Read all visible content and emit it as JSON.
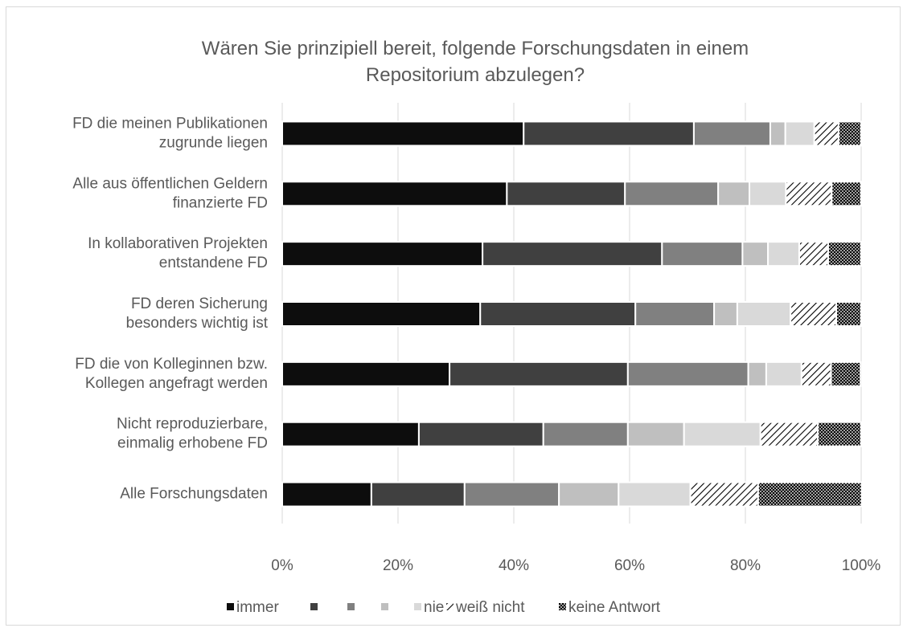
{
  "chart_data": {
    "type": "stacked_barh",
    "title": "Wären Sie prinzipiell bereit, folgende Forschungsdaten in einem\nRepositorium abzulegen?",
    "categories": [
      "FD die meinen Publikationen\nzugrunde liegen",
      "Alle aus öffentlichen Geldern\nfinanzierte FD",
      "In kollaborativen Projekten\nentstandene FD",
      "FD deren Sicherung\nbesonders wichtig ist",
      "FD die von Kolleginnen bzw.\nKollegen angefragt werden",
      "Nicht reproduzierbare,\neinmalig erhobene FD",
      "Alle Forschungsdaten"
    ],
    "series": [
      {
        "name": "immer",
        "color": "#0d0d0d",
        "values": [
          41.7,
          38.8,
          34.6,
          34.2,
          28.9,
          23.6,
          15.4
        ]
      },
      {
        "name": null,
        "color": "#404040",
        "values": [
          29.4,
          20.4,
          31.0,
          26.8,
          30.8,
          21.5,
          16.1
        ]
      },
      {
        "name": null,
        "color": "#808080",
        "values": [
          13.2,
          16.1,
          13.9,
          13.6,
          20.8,
          14.6,
          16.3
        ]
      },
      {
        "name": null,
        "color": "#bfbfbf",
        "values": [
          2.6,
          5.4,
          4.4,
          4.0,
          3.1,
          9.7,
          10.3
        ]
      },
      {
        "name": "nie",
        "color": "#d9d9d9",
        "values": [
          5.0,
          6.3,
          5.4,
          9.2,
          6.1,
          13.2,
          12.4
        ]
      },
      {
        "name": "weiß nicht",
        "color": "hatch",
        "values": [
          4.2,
          7.9,
          5.0,
          7.9,
          5.1,
          9.9,
          11.7
        ]
      },
      {
        "name": "keine Antwort",
        "color": "cross",
        "values": [
          3.9,
          5.1,
          5.7,
          4.3,
          5.1,
          7.5,
          17.9
        ]
      }
    ],
    "xlim": [
      0,
      100
    ],
    "xticks": [
      {
        "value": 0,
        "label": "0%"
      },
      {
        "value": 20,
        "label": "20%"
      },
      {
        "value": 40,
        "label": "40%"
      },
      {
        "value": 60,
        "label": "60%"
      },
      {
        "value": 80,
        "label": "80%"
      },
      {
        "value": 100,
        "label": "100%"
      }
    ],
    "grid": true,
    "legend": "bottom"
  }
}
